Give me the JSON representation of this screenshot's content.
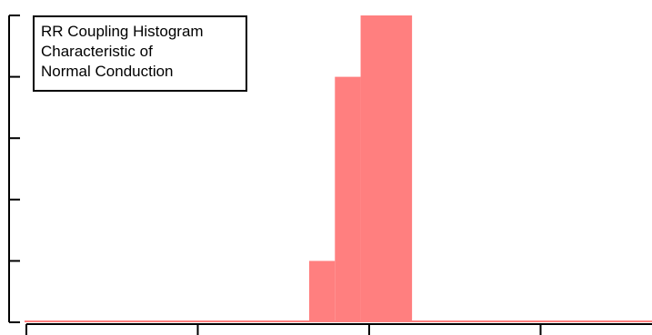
{
  "chart_data": {
    "type": "bar",
    "title": "",
    "xlabel": "",
    "ylabel": "",
    "x_ticks": [
      0,
      1,
      2,
      3
    ],
    "x_tick_labels": [],
    "y_ticks": [
      0,
      1,
      2,
      3,
      4,
      5
    ],
    "y_tick_labels": [],
    "xlim": [
      0,
      3.65
    ],
    "ylim": [
      0,
      5
    ],
    "bar_color": "#ff7f7f",
    "baseline_color": "#ff7f7f",
    "grid": false,
    "legend_placement": "top-left",
    "annotation": [
      "RR Coupling Histogram",
      "Characteristic of",
      "Normal Conduction"
    ],
    "bins": [
      {
        "x0": 1.65,
        "x1": 1.8,
        "value": 1
      },
      {
        "x0": 1.8,
        "x1": 1.95,
        "value": 4
      },
      {
        "x0": 1.95,
        "x1": 2.25,
        "value": 5
      }
    ]
  }
}
